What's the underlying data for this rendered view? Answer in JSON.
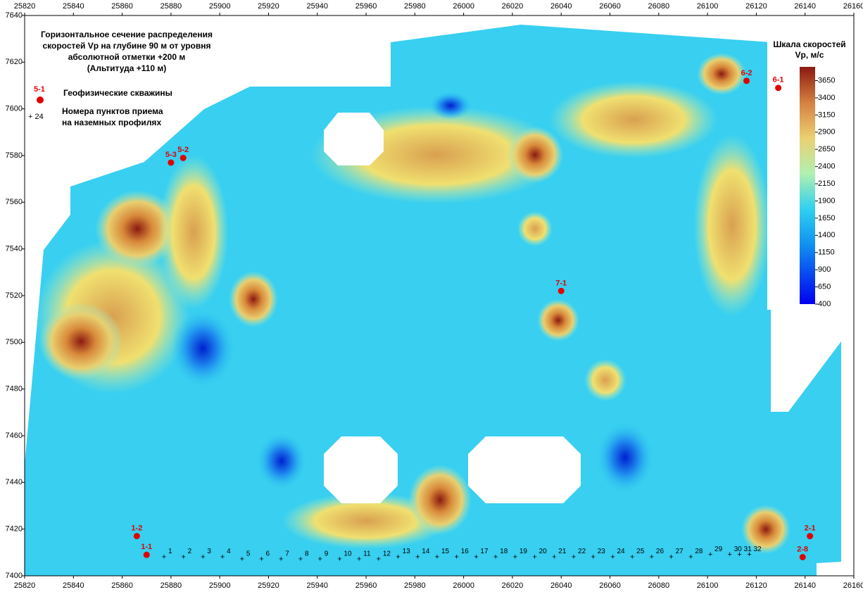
{
  "chart_data": {
    "type": "map",
    "title": [
      "Горизонтальное сечение распределения",
      "скоростей Vp на глубине 90 м от уровня",
      "абсолютной отметки +200 м",
      "(Альтитуда +110 м)"
    ],
    "legend": {
      "wells": "Геофизические скважины",
      "well_sample": "5-1",
      "points": [
        "Номера пунктов приема",
        "на наземных профилях"
      ],
      "point_sample": "+ 24"
    },
    "xlim": [
      25820,
      26160
    ],
    "ylim": [
      7400,
      7640
    ],
    "xticks": [
      25820,
      25840,
      25860,
      25880,
      25900,
      25920,
      25940,
      25960,
      25980,
      26000,
      26020,
      26040,
      26060,
      26080,
      26100,
      26120,
      26140,
      26160
    ],
    "yticks": [
      7400,
      7420,
      7440,
      7460,
      7480,
      7500,
      7520,
      7540,
      7560,
      7580,
      7600,
      7620,
      7640
    ],
    "colorbar": {
      "title": [
        "Шкала скоростей",
        "Vp, м/с"
      ],
      "lim": [
        400,
        3850
      ],
      "ticks": [
        3650,
        3400,
        3150,
        2900,
        2650,
        2400,
        2150,
        1900,
        1650,
        1400,
        1150,
        900,
        650,
        400
      ]
    },
    "wells": {
      "labels": [
        "1-1",
        "1-2",
        "5-3",
        "5-2",
        "7-1",
        "6-2",
        "6-1",
        "2-8",
        "2-1"
      ],
      "x": [
        25870,
        25866,
        25880,
        25885,
        26040,
        26116,
        26129,
        26139,
        26142
      ],
      "y": [
        7409,
        7417,
        7577,
        7579,
        7522,
        7612,
        7609,
        7408,
        7417
      ]
    },
    "profile": {
      "labels": [
        "1",
        "2",
        "3",
        "4",
        "5",
        "6",
        "7",
        "8",
        "9",
        "10",
        "11",
        "12",
        "13",
        "14",
        "15",
        "16",
        "17",
        "18",
        "19",
        "20",
        "21",
        "22",
        "23",
        "24",
        "25",
        "26",
        "27",
        "28",
        "29",
        "30",
        "31",
        "32"
      ],
      "x": [
        25878,
        25886,
        25894,
        25902,
        25910,
        25918,
        25926,
        25934,
        25942,
        25950,
        25958,
        25966,
        25974,
        25982,
        25990,
        25998,
        26006,
        26014,
        26022,
        26030,
        26038,
        26046,
        26054,
        26062,
        26070,
        26078,
        26086,
        26094,
        26102,
        26110,
        26114,
        26118
      ],
      "y": [
        7408,
        7408,
        7408,
        7408,
        7407,
        7407,
        7407,
        7407,
        7407,
        7407,
        7407,
        7407,
        7408,
        7408,
        7408,
        7408,
        7408,
        7408,
        7408,
        7408,
        7408,
        7408,
        7408,
        7408,
        7408,
        7408,
        7408,
        7408,
        7409,
        7409,
        7409,
        7409
      ]
    }
  }
}
